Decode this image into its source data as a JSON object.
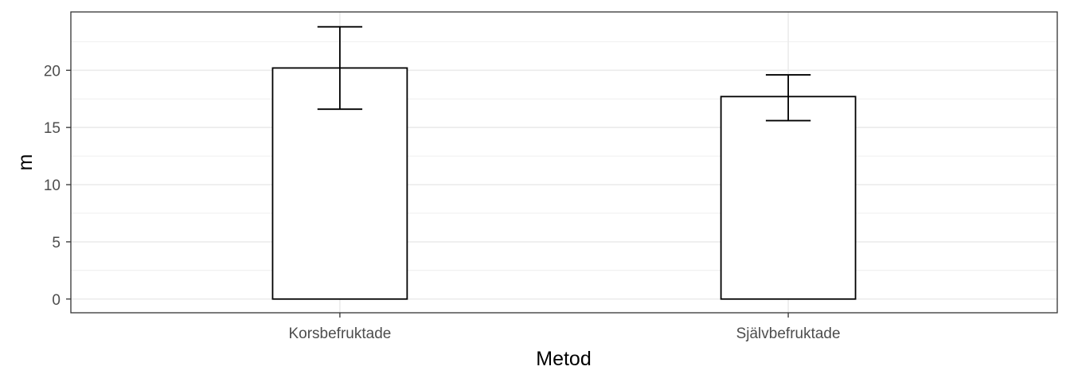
{
  "chart_data": {
    "type": "bar",
    "categories": [
      "Korsbefruktade",
      "Självbefruktade"
    ],
    "values": [
      20.2,
      17.7
    ],
    "error_upper": [
      23.8,
      19.6
    ],
    "error_lower": [
      16.6,
      15.6
    ],
    "xlabel": "Metod",
    "ylabel": "m",
    "ylim": [
      -1.2,
      25.1
    ],
    "yticks": [
      0,
      5,
      10,
      15,
      20
    ],
    "grid": true,
    "bar_fill": "#ffffff",
    "bar_stroke": "#000000",
    "grid_color": "#ebebeb"
  }
}
